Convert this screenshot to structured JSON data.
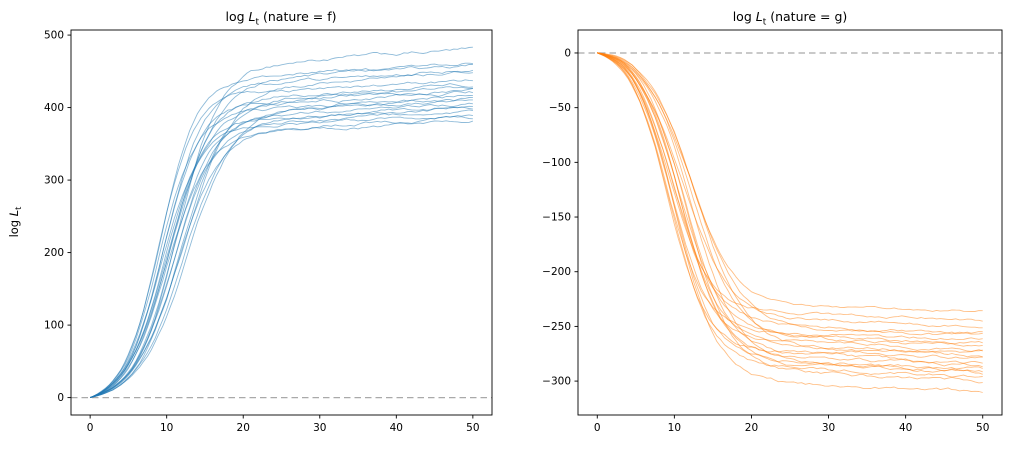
{
  "chart_data": [
    {
      "id": "nature-f",
      "type": "line",
      "title": "log L_t (nature = f)",
      "title_parts": {
        "pre": "log ",
        "var": "L",
        "sub": "t",
        "post": " (nature = f)"
      },
      "ylabel": "log L_t",
      "ylabel_parts": {
        "pre": "log ",
        "var": "L",
        "sub": "t"
      },
      "xlabel": "",
      "x_ticks": [
        0,
        10,
        20,
        30,
        40,
        50
      ],
      "y_ticks": [
        0,
        100,
        200,
        300,
        400,
        500
      ],
      "xlim": [
        -2.5,
        52.5
      ],
      "ylim": [
        -24,
        507
      ],
      "x_range": [
        0,
        50
      ],
      "grid": false,
      "legend": false,
      "reference_line": {
        "y": 0,
        "style": "dashed",
        "color": "#a9a9a9"
      },
      "line_color": "#1f77b4",
      "line_alpha": 0.5,
      "line_width": 0.9,
      "sat_weight": 0.93,
      "noise_amp": 0.014,
      "series": [
        {
          "plateau": 480,
          "mid": 11.5,
          "steep": 2.7
        },
        {
          "plateau": 463,
          "mid": 9.2,
          "steep": 2.4
        },
        {
          "plateau": 458,
          "mid": 10.8,
          "steep": 2.9
        },
        {
          "plateau": 452,
          "mid": 9.8,
          "steep": 2.5
        },
        {
          "plateau": 448,
          "mid": 12.3,
          "steep": 3.1
        },
        {
          "plateau": 437,
          "mid": 8.9,
          "steep": 2.3
        },
        {
          "plateau": 432,
          "mid": 10.4,
          "steep": 2.6
        },
        {
          "plateau": 428,
          "mid": 11.9,
          "steep": 2.8
        },
        {
          "plateau": 425,
          "mid": 9.5,
          "steep": 2.4
        },
        {
          "plateau": 421,
          "mid": 10.1,
          "steep": 2.7
        },
        {
          "plateau": 417,
          "mid": 12.8,
          "steep": 3.0
        },
        {
          "plateau": 413,
          "mid": 9.0,
          "steep": 2.35
        },
        {
          "plateau": 410,
          "mid": 11.1,
          "steep": 2.65
        },
        {
          "plateau": 406,
          "mid": 10.6,
          "steep": 2.55
        },
        {
          "plateau": 402,
          "mid": 9.7,
          "steep": 2.45
        },
        {
          "plateau": 398,
          "mid": 12.0,
          "steep": 2.85
        },
        {
          "plateau": 395,
          "mid": 10.9,
          "steep": 2.6
        },
        {
          "plateau": 391,
          "mid": 9.3,
          "steep": 2.5
        },
        {
          "plateau": 386,
          "mid": 11.4,
          "steep": 2.75
        },
        {
          "plateau": 381,
          "mid": 10.0,
          "steep": 2.6
        }
      ]
    },
    {
      "id": "nature-g",
      "type": "line",
      "title": "log L_t (nature = g)",
      "title_parts": {
        "pre": "log ",
        "var": "L",
        "sub": "t",
        "post": " (nature = g)"
      },
      "ylabel": "",
      "xlabel": "",
      "x_ticks": [
        0,
        10,
        20,
        30,
        40,
        50
      ],
      "y_ticks": [
        0,
        -50,
        -100,
        -150,
        -200,
        -250,
        -300
      ],
      "xlim": [
        -2.5,
        52.5
      ],
      "ylim": [
        -331,
        21
      ],
      "x_range": [
        0,
        50
      ],
      "grid": false,
      "legend": false,
      "reference_line": {
        "y": 0,
        "style": "dashed",
        "color": "#a9a9a9"
      },
      "line_color": "#ff7f0e",
      "line_alpha": 0.5,
      "line_width": 0.9,
      "sat_weight": 0.95,
      "noise_amp": 0.014,
      "series": [
        {
          "plateau": -236,
          "mid": 12.0,
          "steep": 2.8,
          "bump": 2.5
        },
        {
          "plateau": -244,
          "mid": 9.4,
          "steep": 2.5,
          "bump": 1.2
        },
        {
          "plateau": -250,
          "mid": 11.0,
          "steep": 3.0,
          "bump": 3.0
        },
        {
          "plateau": -256,
          "mid": 10.0,
          "steep": 2.6,
          "bump": 1.8
        },
        {
          "plateau": -259,
          "mid": 12.6,
          "steep": 3.2,
          "bump": 2.2
        },
        {
          "plateau": -262,
          "mid": 9.1,
          "steep": 2.4,
          "bump": 0.8
        },
        {
          "plateau": -265,
          "mid": 10.6,
          "steep": 2.7,
          "bump": 2.8
        },
        {
          "plateau": -268,
          "mid": 12.2,
          "steep": 2.9,
          "bump": 1.5
        },
        {
          "plateau": -271,
          "mid": 9.7,
          "steep": 2.5,
          "bump": 2.0
        },
        {
          "plateau": -274,
          "mid": 10.3,
          "steep": 2.8,
          "bump": 1.0
        },
        {
          "plateau": -277,
          "mid": 13.0,
          "steep": 3.1,
          "bump": 3.2
        },
        {
          "plateau": -280,
          "mid": 9.2,
          "steep": 2.45,
          "bump": 1.4
        },
        {
          "plateau": -283,
          "mid": 11.3,
          "steep": 2.75,
          "bump": 2.6
        },
        {
          "plateau": -286,
          "mid": 10.8,
          "steep": 2.65,
          "bump": 1.6
        },
        {
          "plateau": -289,
          "mid": 9.9,
          "steep": 2.55,
          "bump": 2.4
        },
        {
          "plateau": -291,
          "mid": 12.3,
          "steep": 2.95,
          "bump": 1.1
        },
        {
          "plateau": -293,
          "mid": 11.1,
          "steep": 2.7,
          "bump": 2.9
        },
        {
          "plateau": -296,
          "mid": 9.5,
          "steep": 2.6,
          "bump": 1.3
        },
        {
          "plateau": -300,
          "mid": 11.6,
          "steep": 2.85,
          "bump": 2.1
        },
        {
          "plateau": -310,
          "mid": 10.2,
          "steep": 2.7,
          "bump": 1.7
        }
      ]
    }
  ]
}
